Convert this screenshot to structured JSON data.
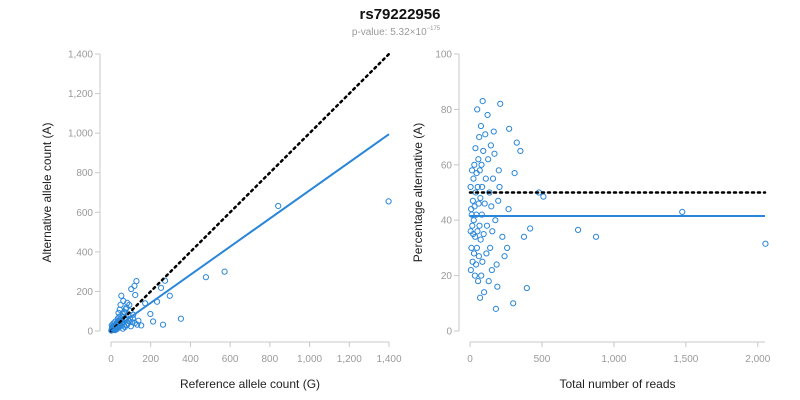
{
  "header": {
    "title": "rs79222956",
    "pvalue_prefix": "p-value: 5.32×10",
    "pvalue_exponent": "−175"
  },
  "colors": {
    "points": "#2a86d9",
    "fit_line": "#2a86d9",
    "reference_line": "#000000"
  },
  "chart_data": [
    {
      "type": "scatter",
      "title": "",
      "xlabel": "Reference allele count (G)",
      "ylabel": "Alternative allele count (A)",
      "xlim": [
        0,
        1400
      ],
      "ylim": [
        0,
        1400
      ],
      "xticks": [
        0,
        200,
        400,
        600,
        800,
        1000,
        1200,
        1400
      ],
      "yticks": [
        0,
        200,
        400,
        600,
        800,
        1000,
        1200,
        1400
      ],
      "xtick_labels": [
        "0",
        "200",
        "400",
        "600",
        "800",
        "1,000",
        "1,200",
        "1,400"
      ],
      "ytick_labels": [
        "0",
        "200",
        "400",
        "600",
        "800",
        "1,000",
        "1,200",
        "1,400"
      ],
      "grid": false,
      "reference_line": {
        "style": "dotted",
        "x": [
          0,
          1400
        ],
        "y": [
          0,
          1400
        ]
      },
      "fit_line": {
        "style": "solid",
        "x": [
          0,
          1400
        ],
        "y": [
          0,
          995
        ]
      },
      "points": [
        [
          1398,
          655
        ],
        [
          842,
          632
        ],
        [
          572,
          300
        ],
        [
          478,
          272
        ],
        [
          352,
          62
        ],
        [
          296,
          178
        ],
        [
          272,
          254
        ],
        [
          262,
          32
        ],
        [
          252,
          218
        ],
        [
          232,
          148
        ],
        [
          212,
          48
        ],
        [
          198,
          86
        ],
        [
          172,
          140
        ],
        [
          152,
          28
        ],
        [
          138,
          52
        ],
        [
          132,
          32
        ],
        [
          128,
          252
        ],
        [
          122,
          182
        ],
        [
          118,
          228
        ],
        [
          112,
          82
        ],
        [
          102,
          212
        ],
        [
          98,
          102
        ],
        [
          92,
          132
        ],
        [
          88,
          82
        ],
        [
          82,
          142
        ],
        [
          78,
          118
        ],
        [
          72,
          92
        ],
        [
          68,
          62
        ],
        [
          62,
          152
        ],
        [
          58,
          88
        ],
        [
          52,
          178
        ],
        [
          48,
          132
        ],
        [
          44,
          108
        ],
        [
          42,
          72
        ],
        [
          38,
          92
        ],
        [
          36,
          52
        ],
        [
          34,
          62
        ],
        [
          32,
          28
        ],
        [
          30,
          42
        ],
        [
          28,
          18
        ],
        [
          26,
          32
        ],
        [
          24,
          12
        ],
        [
          22,
          48
        ],
        [
          20,
          22
        ],
        [
          18,
          8
        ],
        [
          16,
          28
        ],
        [
          14,
          12
        ],
        [
          12,
          38
        ],
        [
          12,
          18
        ],
        [
          10,
          8
        ],
        [
          8,
          22
        ],
        [
          6,
          4
        ],
        [
          5,
          14
        ],
        [
          4,
          28
        ],
        [
          3,
          6
        ],
        [
          2,
          2
        ],
        [
          55,
          42
        ],
        [
          65,
          28
        ],
        [
          75,
          55
        ],
        [
          85,
          38
        ],
        [
          95,
          62
        ],
        [
          105,
          45
        ],
        [
          45,
          35
        ],
        [
          35,
          22
        ],
        [
          25,
          18
        ],
        [
          15,
          6
        ],
        [
          60,
          12
        ],
        [
          70,
          20
        ],
        [
          50,
          26
        ],
        [
          40,
          18
        ],
        [
          30,
          10
        ],
        [
          20,
          4
        ],
        [
          80,
          30
        ],
        [
          90,
          50
        ],
        [
          110,
          64
        ],
        [
          120,
          40
        ],
        [
          58,
          70
        ],
        [
          66,
          96
        ],
        [
          74,
          110
        ],
        [
          46,
          58
        ],
        [
          38,
          44
        ],
        [
          28,
          36
        ],
        [
          18,
          14
        ],
        [
          10,
          16
        ],
        [
          100,
          24
        ],
        [
          64,
          44
        ],
        [
          54,
          54
        ],
        [
          44,
          48
        ],
        [
          34,
          30
        ],
        [
          24,
          24
        ]
      ]
    },
    {
      "type": "scatter",
      "title": "",
      "xlabel": "Total number of reads",
      "ylabel": "Percentage alternative (A)",
      "xlim": [
        0,
        2050
      ],
      "ylim": [
        0,
        100
      ],
      "xticks": [
        0,
        500,
        1000,
        1500,
        2000
      ],
      "yticks": [
        0,
        20,
        40,
        60,
        80,
        100
      ],
      "xtick_labels": [
        "0",
        "500",
        "1,000",
        "1,500",
        "2,000"
      ],
      "ytick_labels": [
        "0",
        "20",
        "40",
        "60",
        "80",
        "100"
      ],
      "grid": false,
      "reference_line": {
        "style": "dotted",
        "x": [
          0,
          2050
        ],
        "y": [
          50,
          50
        ]
      },
      "fit_line": {
        "style": "solid",
        "x": [
          0,
          2050
        ],
        "y": [
          41.5,
          41.5
        ]
      },
      "points": [
        [
          2053,
          31.5
        ],
        [
          1475,
          43
        ],
        [
          876,
          34
        ],
        [
          751,
          36.5
        ],
        [
          510,
          48.5
        ],
        [
          479,
          50
        ],
        [
          418,
          37
        ],
        [
          395,
          15.5
        ],
        [
          375,
          34
        ],
        [
          350,
          65
        ],
        [
          325,
          68
        ],
        [
          310,
          57
        ],
        [
          300,
          10
        ],
        [
          272,
          73
        ],
        [
          268,
          44
        ],
        [
          258,
          30
        ],
        [
          240,
          27
        ],
        [
          225,
          34
        ],
        [
          210,
          82
        ],
        [
          205,
          52
        ],
        [
          200,
          58
        ],
        [
          196,
          47
        ],
        [
          190,
          16
        ],
        [
          185,
          24
        ],
        [
          180,
          8
        ],
        [
          176,
          40
        ],
        [
          170,
          64
        ],
        [
          165,
          72
        ],
        [
          160,
          55
        ],
        [
          155,
          36
        ],
        [
          152,
          22
        ],
        [
          148,
          45
        ],
        [
          145,
          67
        ],
        [
          140,
          30
        ],
        [
          135,
          50
        ],
        [
          130,
          18
        ],
        [
          126,
          62
        ],
        [
          122,
          78
        ],
        [
          118,
          38
        ],
        [
          114,
          28
        ],
        [
          110,
          55
        ],
        [
          106,
          71
        ],
        [
          102,
          46
        ],
        [
          98,
          14
        ],
        [
          95,
          35
        ],
        [
          92,
          65
        ],
        [
          88,
          83
        ],
        [
          86,
          25
        ],
        [
          84,
          52
        ],
        [
          82,
          42
        ],
        [
          80,
          60
        ],
        [
          78,
          20
        ],
        [
          76,
          74
        ],
        [
          74,
          33
        ],
        [
          72,
          48
        ],
        [
          70,
          12
        ],
        [
          68,
          58
        ],
        [
          66,
          38
        ],
        [
          64,
          70
        ],
        [
          62,
          27
        ],
        [
          60,
          46
        ],
        [
          58,
          62
        ],
        [
          56,
          18
        ],
        [
          54,
          52
        ],
        [
          52,
          36
        ],
        [
          50,
          80
        ],
        [
          48,
          30
        ],
        [
          46,
          57
        ],
        [
          44,
          42
        ],
        [
          42,
          24
        ],
        [
          40,
          50
        ],
        [
          38,
          66
        ],
        [
          36,
          34
        ],
        [
          34,
          20
        ],
        [
          32,
          45
        ],
        [
          30,
          60
        ],
        [
          28,
          28
        ],
        [
          26,
          40
        ],
        [
          24,
          55
        ],
        [
          22,
          35
        ],
        [
          20,
          47
        ],
        [
          18,
          25
        ],
        [
          16,
          38
        ],
        [
          14,
          58
        ],
        [
          12,
          42
        ],
        [
          10,
          30
        ],
        [
          8,
          44
        ],
        [
          6,
          22
        ],
        [
          5,
          36
        ],
        [
          4,
          52
        ]
      ]
    }
  ]
}
